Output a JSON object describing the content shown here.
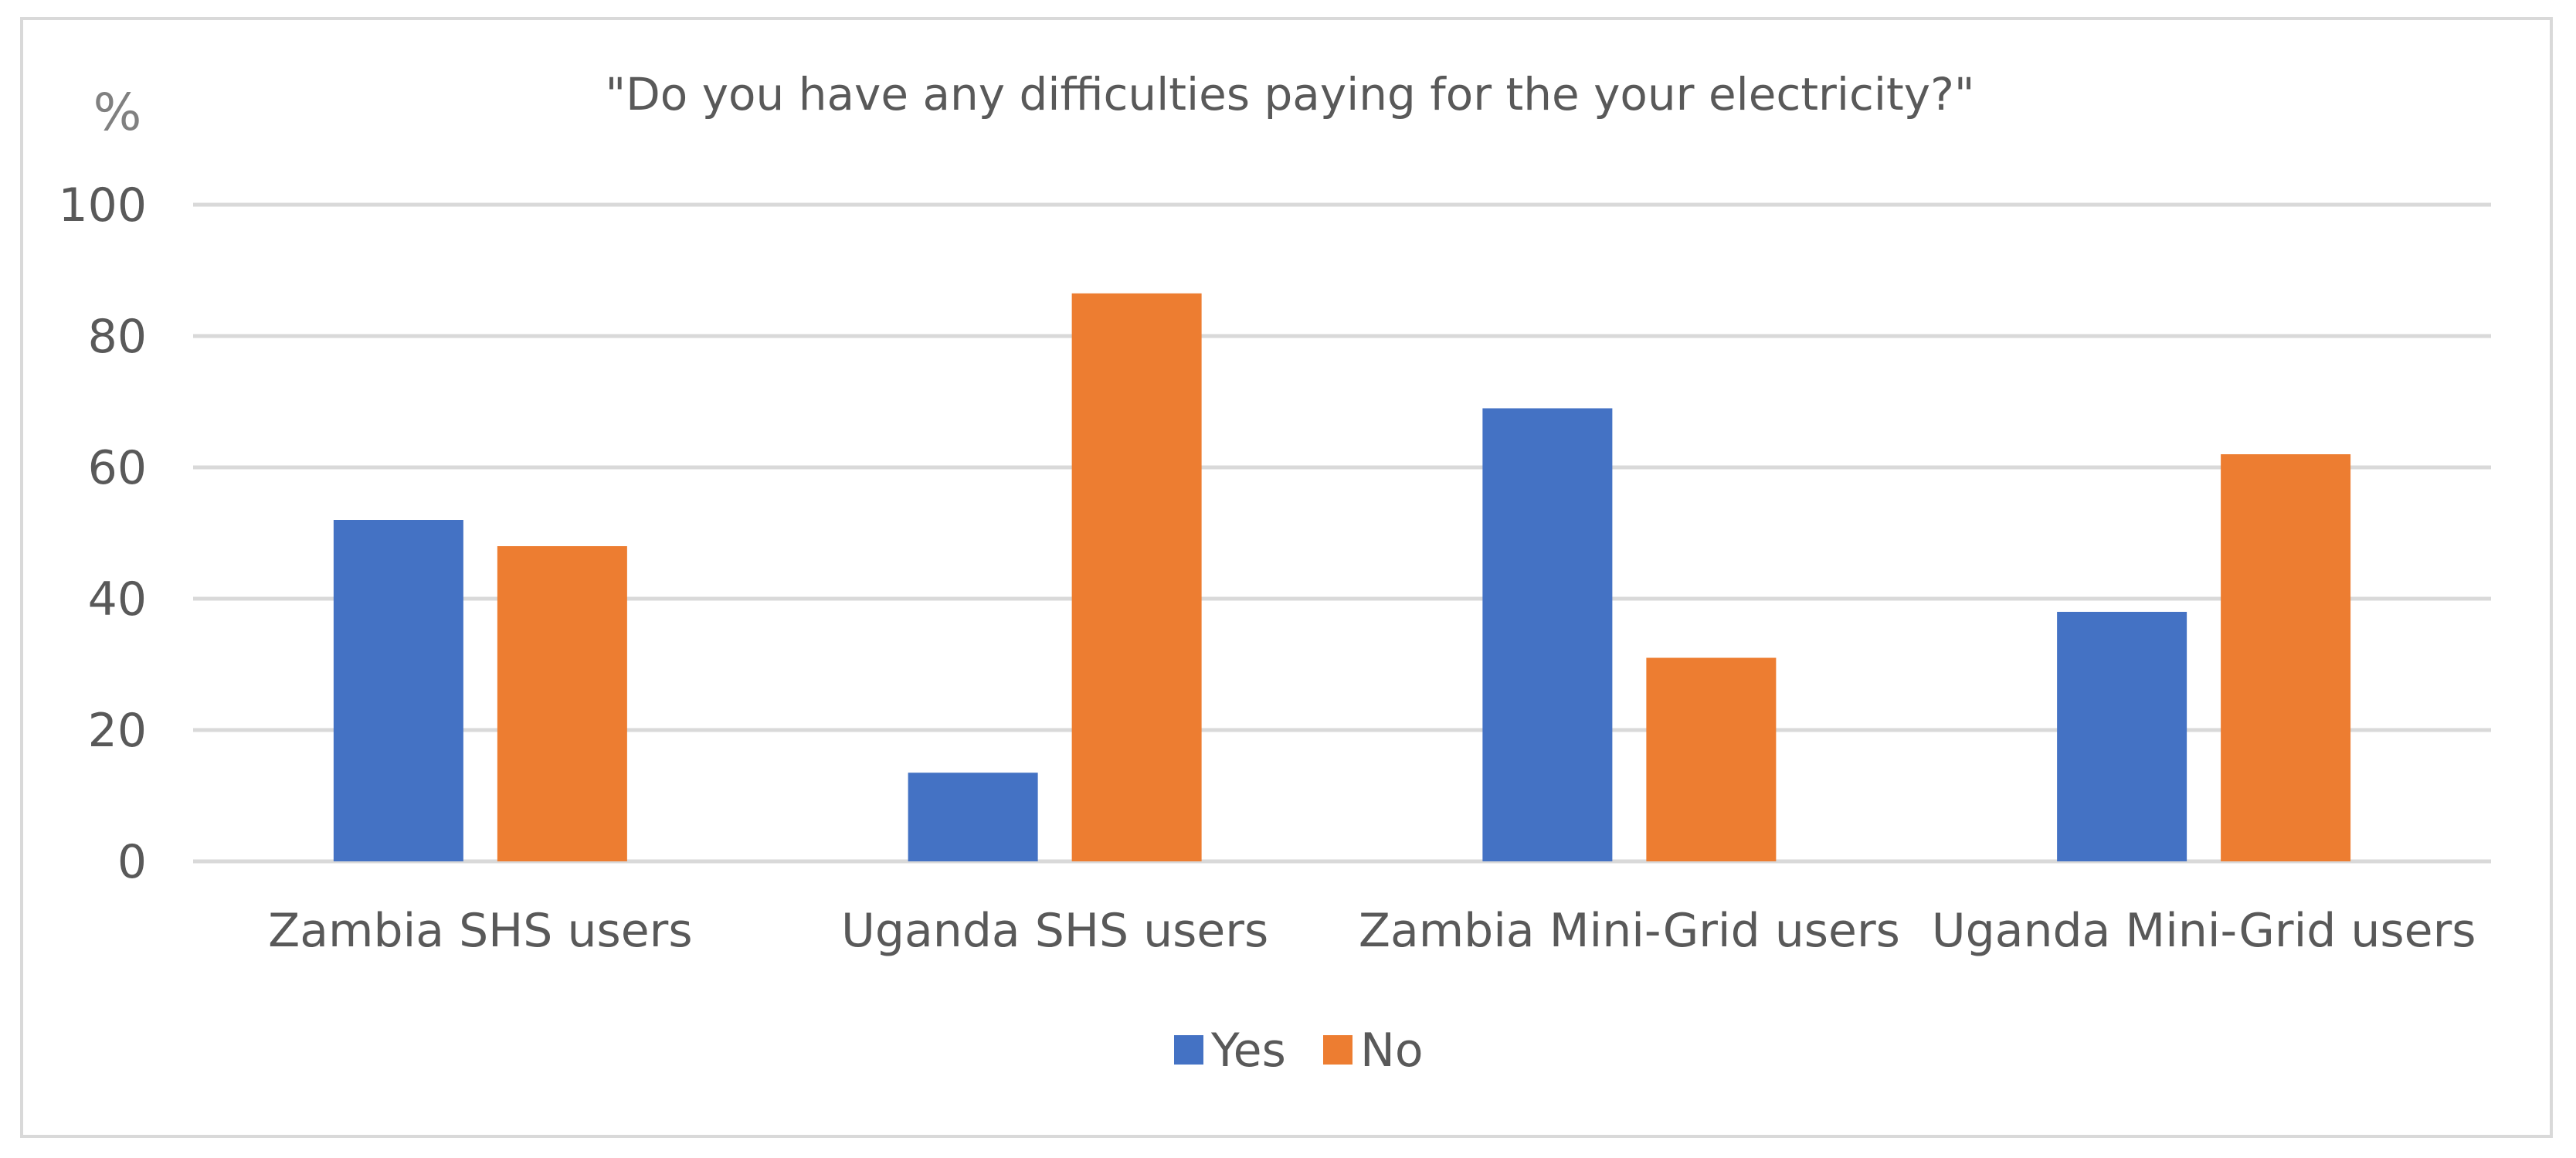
{
  "chart_data": {
    "type": "bar",
    "title": "\"Do you have any difficulties paying for the your electricity?\"",
    "xlabel": "",
    "ylabel": "%",
    "ylim": [
      0,
      100
    ],
    "yticks": [
      "0",
      "20",
      "40",
      "60",
      "80",
      "100"
    ],
    "categories": [
      "Zambia SHS users",
      "Uganda SHS users",
      "Zambia Mini-Grid users",
      "Uganda Mini-Grid users"
    ],
    "series": [
      {
        "name": "Yes",
        "color": "#4472c4",
        "values": [
          52,
          13.5,
          69,
          38
        ]
      },
      {
        "name": "No",
        "color": "#ed7d31",
        "values": [
          48,
          86.5,
          31,
          62
        ]
      }
    ],
    "grid": true,
    "legend": "bottom"
  }
}
